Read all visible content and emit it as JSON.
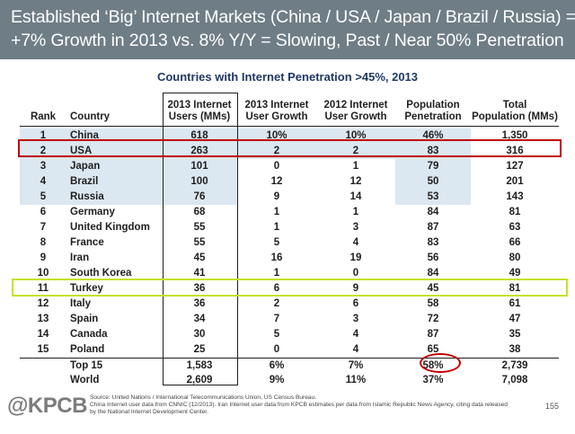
{
  "header": {
    "line1": "Established ‘Big’ Internet Markets (China / USA / Japan / Brazil / Russia) =",
    "line2": "+7% Growth in 2013 vs. 8% Y/Y = Slowing, Past / Near 50% Penetration"
  },
  "table_title": "Countries with Internet Penetration >45%, 2013",
  "columns": {
    "rank": "Rank",
    "country": "Country",
    "users": [
      "2013 Internet",
      "Users (MMs)"
    ],
    "growth2013": [
      "2013 Internet",
      "User Growth"
    ],
    "growth2012": [
      "2012 Internet",
      "User Growth"
    ],
    "penetration": [
      "Population",
      "Penetration"
    ],
    "population": [
      "Total",
      "Population (MMs)"
    ]
  },
  "rows": [
    {
      "rank": "1",
      "country": "China",
      "users": "618",
      "g2013": "10%",
      "g2012": "10%",
      "pen": "46%",
      "pop": "1,350"
    },
    {
      "rank": "2",
      "country": "USA",
      "users": "263",
      "g2013": "2",
      "g2012": "2",
      "pen": "83",
      "pop": "316"
    },
    {
      "rank": "3",
      "country": "Japan",
      "users": "101",
      "g2013": "0",
      "g2012": "1",
      "pen": "79",
      "pop": "127"
    },
    {
      "rank": "4",
      "country": "Brazil",
      "users": "100",
      "g2013": "12",
      "g2012": "12",
      "pen": "50",
      "pop": "201"
    },
    {
      "rank": "5",
      "country": "Russia",
      "users": "76",
      "g2013": "9",
      "g2012": "14",
      "pen": "53",
      "pop": "143"
    },
    {
      "rank": "6",
      "country": "Germany",
      "users": "68",
      "g2013": "1",
      "g2012": "1",
      "pen": "84",
      "pop": "81"
    },
    {
      "rank": "7",
      "country": "United Kingdom",
      "users": "55",
      "g2013": "1",
      "g2012": "3",
      "pen": "87",
      "pop": "63"
    },
    {
      "rank": "8",
      "country": "France",
      "users": "55",
      "g2013": "5",
      "g2012": "4",
      "pen": "83",
      "pop": "66"
    },
    {
      "rank": "9",
      "country": "Iran",
      "users": "45",
      "g2013": "16",
      "g2012": "19",
      "pen": "56",
      "pop": "80"
    },
    {
      "rank": "10",
      "country": "South Korea",
      "users": "41",
      "g2013": "1",
      "g2012": "0",
      "pen": "84",
      "pop": "49"
    },
    {
      "rank": "11",
      "country": "Turkey",
      "users": "36",
      "g2013": "6",
      "g2012": "9",
      "pen": "45",
      "pop": "81"
    },
    {
      "rank": "12",
      "country": "Italy",
      "users": "36",
      "g2013": "2",
      "g2012": "6",
      "pen": "58",
      "pop": "61"
    },
    {
      "rank": "13",
      "country": "Spain",
      "users": "34",
      "g2013": "7",
      "g2012": "3",
      "pen": "72",
      "pop": "47"
    },
    {
      "rank": "14",
      "country": "Canada",
      "users": "30",
      "g2013": "5",
      "g2012": "4",
      "pen": "87",
      "pop": "35"
    },
    {
      "rank": "15",
      "country": "Poland",
      "users": "25",
      "g2013": "0",
      "g2012": "4",
      "pen": "65",
      "pop": "38"
    }
  ],
  "summary": [
    {
      "label": "Top 15",
      "users": "1,583",
      "g2013": "6%",
      "g2012": "7%",
      "pen": "58%",
      "pop": "2,739"
    },
    {
      "label": "World",
      "users": "2,609",
      "g2013": "9%",
      "g2012": "11%",
      "pen": "37%",
      "pop": "7,098"
    }
  ],
  "footer": {
    "logo": "@KPCB",
    "source_line1": "Source: United Nations / International Telecommunications Union, US Census Bureau.",
    "source_line2": "China Internet user data from CNNIC (12/2013). Iran Internet user data from KPCB estimates per data from Islamic Republic News Agency, citing data released",
    "source_line3": "by the National Internet Development Center.",
    "page": "155"
  },
  "colors": {
    "header_bg": "#6f7d86",
    "highlight_shade": "#dbe7f1",
    "usa_box": "#c00000",
    "turkey_box": "#c6e12a",
    "oval": "#c00000"
  }
}
